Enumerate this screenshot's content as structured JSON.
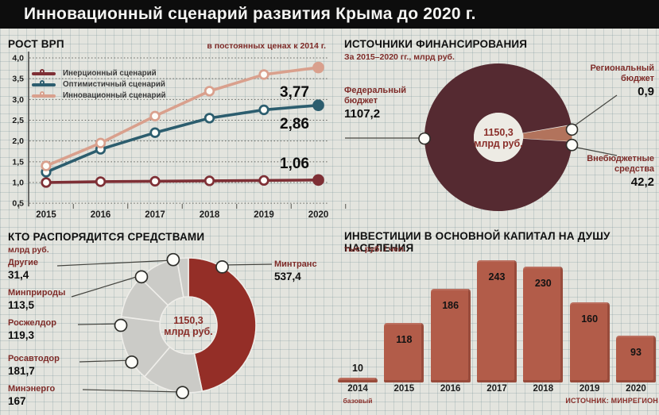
{
  "header": {
    "title": "Инновационный сценарий развития Крыма до 2020 г."
  },
  "source_note": "ИСТОЧНИК: МИНРЕГИОН",
  "center_total": {
    "value": "1150,3",
    "unit": "млрд руб."
  },
  "chart_data": [
    {
      "type": "line",
      "title": "РОСТ ВРП",
      "subtitle": "в постоянных ценах к 2014 г.",
      "x": [
        "2015",
        "2016",
        "2017",
        "2018",
        "2019",
        "2020"
      ],
      "ylim": [
        0.5,
        4.0
      ],
      "yticks": [
        {
          "v": 4.0,
          "label": "4,0"
        },
        {
          "v": 3.5,
          "label": "3,5"
        },
        {
          "v": 3.0,
          "label": "3,0"
        },
        {
          "v": 2.5,
          "label": "2,5"
        },
        {
          "v": 2.0,
          "label": "2,0"
        },
        {
          "v": 1.5,
          "label": "1,5"
        },
        {
          "v": 1.0,
          "label": "1,0"
        },
        {
          "v": 0.5,
          "label": "0,5"
        }
      ],
      "series": [
        {
          "name": "Инерционный сценарий",
          "color": "#7e2f35",
          "values": [
            1.0,
            1.02,
            1.03,
            1.04,
            1.05,
            1.06
          ],
          "end_label": "1,06"
        },
        {
          "name": "Оптимистичный сценарий",
          "color": "#2c5d6e",
          "values": [
            1.25,
            1.8,
            2.2,
            2.55,
            2.75,
            2.86
          ],
          "end_label": "2,86"
        },
        {
          "name": "Инновационный сценарий",
          "color": "#d9a08d",
          "values": [
            1.4,
            1.95,
            2.6,
            3.2,
            3.6,
            3.77
          ],
          "end_label": "3,77"
        }
      ],
      "grid": "dotted-horizontal",
      "legend_position": "top-left"
    },
    {
      "type": "pie",
      "title": "ИСТОЧНИКИ ФИНАНСИРОВАНИЯ",
      "subtitle": "За 2015–2020 гг., млрд руб.",
      "total": 1150.3,
      "slices": [
        {
          "label": "Федеральный бюджет",
          "value": 1107.2,
          "display": "1107,2",
          "color": "#552a31"
        },
        {
          "label": "Региональный бюджет",
          "value": 0.9,
          "display": "0,9",
          "color": "#8a5a50"
        },
        {
          "label": "Внебюджетные средства",
          "value": 42.2,
          "display": "42,2",
          "color": "#b2735c"
        }
      ]
    },
    {
      "type": "pie",
      "title": "КТО РАСПОРЯДИТСЯ СРЕДСТВАМИ",
      "subtitle": "млрд руб.",
      "total": 1150.3,
      "slices": [
        {
          "label": "Минтранс",
          "value": 537.4,
          "display": "537,4",
          "color": "#942e27"
        },
        {
          "label": "Минэнерго",
          "value": 167.0,
          "display": "167",
          "color": "#cbcbc7"
        },
        {
          "label": "Росавтодор",
          "value": 181.7,
          "display": "181,7",
          "color": "#cbcbc7"
        },
        {
          "label": "Росжелдор",
          "value": 119.3,
          "display": "119,3",
          "color": "#cbcbc7"
        },
        {
          "label": "Минприроды",
          "value": 113.5,
          "display": "113,5",
          "color": "#cbcbc7"
        },
        {
          "label": "Другие",
          "value": 31.4,
          "display": "31,4",
          "color": "#cbcbc7"
        }
      ]
    },
    {
      "type": "bar",
      "title": "ИНВЕСТИЦИИ В ОСНОВНОЙ КАПИТАЛ НА ДУШУ НАСЕЛЕНИЯ",
      "subtitle": "тыс. руб. / чел.",
      "categories": [
        "2014",
        "2015",
        "2016",
        "2017",
        "2018",
        "2019",
        "2020"
      ],
      "values": [
        10,
        118,
        186,
        243,
        230,
        160,
        93
      ],
      "note_under_first": "базовый",
      "bar_color": "#b25c49",
      "ylim": [
        0,
        250
      ]
    }
  ]
}
